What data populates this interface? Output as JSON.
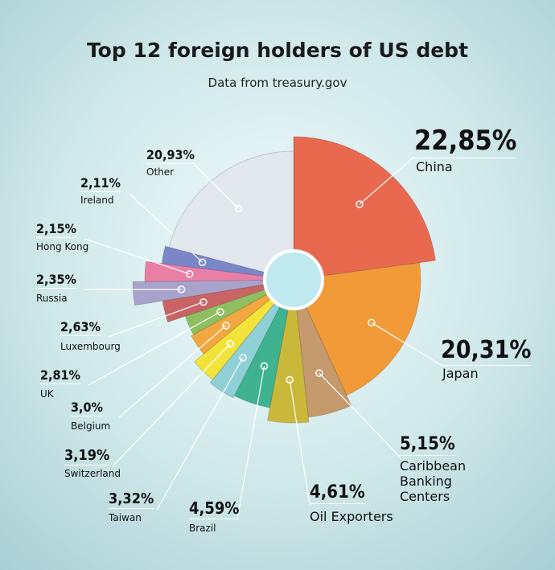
{
  "chart_data": {
    "type": "pie",
    "title": "Top 12 foreign holders of US debt",
    "subtitle": "Data from treasury.gov",
    "categories": [
      "China",
      "Japan",
      "Caribbean Banking Centers",
      "Oil Exporters",
      "Brazil",
      "Taiwan",
      "Switzerland",
      "Belgium",
      "UK",
      "Luxembourg",
      "Russia",
      "Hong Kong",
      "Ireland",
      "Other"
    ],
    "values": [
      22.85,
      20.31,
      5.15,
      4.61,
      4.59,
      3.32,
      3.19,
      3.0,
      2.81,
      2.63,
      2.35,
      2.15,
      2.11,
      20.93
    ],
    "value_labels": [
      "22,85%",
      "20,31%",
      "5,15%",
      "4,61%",
      "4,59%",
      "3,32%",
      "3,19%",
      "3,0%",
      "2,81%",
      "2,63%",
      "2,35%",
      "2,15%",
      "2,11%",
      "20,93%"
    ],
    "colors": [
      "#e9694f",
      "#f29a38",
      "#c49a6c",
      "#c9b83a",
      "#3fb28f",
      "#8fd0d6",
      "#f2e33a",
      "#f2a840",
      "#8fbf60",
      "#c96464",
      "#a9a3cc",
      "#ea7fa6",
      "#7a86c8",
      "#e3e8ef"
    ]
  }
}
